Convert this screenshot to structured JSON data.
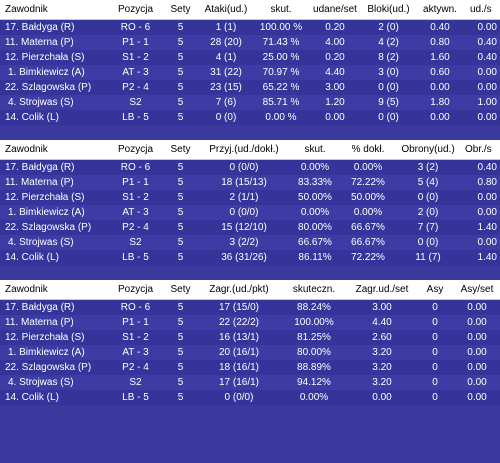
{
  "colors": {
    "header_bg": "#ffffff",
    "header_text": "#000000",
    "body_bg": "#3a3a9e",
    "body_text": "#ffffff"
  },
  "table1": {
    "headers": [
      "Zawodnik",
      "Pozycja",
      "Sety",
      "Ataki(ud.)",
      "skut.",
      "udane/set",
      "Bloki(ud.)",
      "aktywn.",
      "ud./s"
    ],
    "rows": [
      [
        "17. Bałdyga (R)",
        "RO - 6",
        "5",
        "1 (1)",
        "100.00 %",
        "0.20",
        "2 (0)",
        "0.40",
        "0.00"
      ],
      [
        "11. Materna (P)",
        "P1 - 1",
        "5",
        "28 (20)",
        "71.43 %",
        "4.00",
        "4 (2)",
        "0.80",
        "0.40"
      ],
      [
        "12. Pierzchała (S)",
        "S1 - 2",
        "5",
        "4 (1)",
        "25.00 %",
        "0.20",
        "8 (2)",
        "1.60",
        "0.40"
      ],
      [
        "1. Bimkiewicz (A)",
        "AT - 3",
        "5",
        "31 (22)",
        "70.97 %",
        "4.40",
        "3 (0)",
        "0.60",
        "0.00"
      ],
      [
        "22. Szlagowska (P)",
        "P2 - 4",
        "5",
        "23 (15)",
        "65.22 %",
        "3.00",
        "0 (0)",
        "0.00",
        "0.00"
      ],
      [
        "4. Strojwas (S)",
        "S2",
        "5",
        "7 (6)",
        "85.71 %",
        "1.20",
        "9 (5)",
        "1.80",
        "1.00"
      ],
      [
        "14. Colik (L)",
        "LB - 5",
        "5",
        "0 (0)",
        "0.00 %",
        "0.00",
        "0 (0)",
        "0.00",
        "0.00"
      ]
    ]
  },
  "table2": {
    "headers": [
      "Zawodnik",
      "Pozycja",
      "Sety",
      "Przyj.(ud./dokł.)",
      "skut.",
      "% dokł.",
      "Obrony(ud.)",
      "Obr./s"
    ],
    "rows": [
      [
        "17. Bałdyga (R)",
        "RO - 6",
        "5",
        "0 (0/0)",
        "0.00%",
        "0.00%",
        "3 (2)",
        "0.40"
      ],
      [
        "11. Materna (P)",
        "P1 - 1",
        "5",
        "18 (15/13)",
        "83.33%",
        "72.22%",
        "5 (4)",
        "0.80"
      ],
      [
        "12. Pierzchała (S)",
        "S1 - 2",
        "5",
        "2 (1/1)",
        "50.00%",
        "50.00%",
        "0 (0)",
        "0.00"
      ],
      [
        "1. Bimkiewicz (A)",
        "AT - 3",
        "5",
        "0 (0/0)",
        "0.00%",
        "0.00%",
        "2 (0)",
        "0.00"
      ],
      [
        "22. Szlagowska (P)",
        "P2 - 4",
        "5",
        "15 (12/10)",
        "80.00%",
        "66.67%",
        "7 (7)",
        "1.40"
      ],
      [
        "4. Strojwas (S)",
        "S2",
        "5",
        "3 (2/2)",
        "66.67%",
        "66.67%",
        "0 (0)",
        "0.00"
      ],
      [
        "14. Colik (L)",
        "LB - 5",
        "5",
        "36 (31/26)",
        "86.11%",
        "72.22%",
        "11 (7)",
        "1.40"
      ]
    ]
  },
  "table3": {
    "headers": [
      "Zawodnik",
      "Pozycja",
      "Sety",
      "Zagr.(ud./pkt)",
      "skuteczn.",
      "Zagr.ud./set",
      "Asy",
      "Asy/set"
    ],
    "rows": [
      [
        "17. Bałdyga (R)",
        "RO - 6",
        "5",
        "17 (15/0)",
        "88.24%",
        "3.00",
        "0",
        "0.00"
      ],
      [
        "11. Materna (P)",
        "P1 - 1",
        "5",
        "22 (22/2)",
        "100.00%",
        "4.40",
        "0",
        "0.00"
      ],
      [
        "12. Pierzchała (S)",
        "S1 - 2",
        "5",
        "16 (13/1)",
        "81.25%",
        "2.60",
        "0",
        "0.00"
      ],
      [
        "1. Bimkiewicz (A)",
        "AT - 3",
        "5",
        "20 (16/1)",
        "80.00%",
        "3.20",
        "0",
        "0.00"
      ],
      [
        "22. Szlagowska (P)",
        "P2 - 4",
        "5",
        "18 (16/1)",
        "88.89%",
        "3.20",
        "0",
        "0.00"
      ],
      [
        "4. Strojwas (S)",
        "S2",
        "5",
        "17 (16/1)",
        "94.12%",
        "3.20",
        "0",
        "0.00"
      ],
      [
        "14. Colik (L)",
        "LB - 5",
        "5",
        "0 (0/0)",
        "0.00%",
        "0.00",
        "0",
        "0.00"
      ]
    ]
  }
}
